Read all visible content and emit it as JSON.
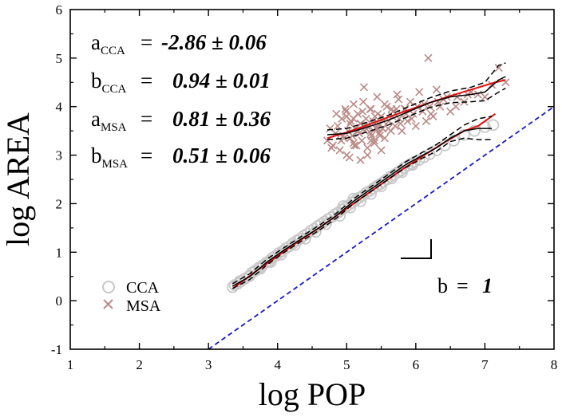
{
  "chart_data": {
    "type": "scatter",
    "title": "",
    "xlabel": "log POP",
    "ylabel": "log AREA",
    "xlim": [
      1,
      8
    ],
    "ylim": [
      -1,
      6
    ],
    "xticks": [
      "1",
      "2",
      "3",
      "4",
      "5",
      "6",
      "7",
      "8"
    ],
    "yticks": [
      "-1",
      "0",
      "1",
      "2",
      "3",
      "4",
      "5",
      "6"
    ],
    "annotations": [
      {
        "param": "a",
        "sub": "CCA",
        "eq": "=",
        "value": "-2.86 ± 0.06"
      },
      {
        "param": "b",
        "sub": "CCA",
        "eq": "=",
        "value": "0.94 ± 0.01"
      },
      {
        "param": "a",
        "sub": "MSA",
        "eq": "=",
        "value": "0.81 ± 0.36"
      },
      {
        "param": "b",
        "sub": "MSA",
        "eq": "=",
        "value": "0.51 ± 0.06"
      }
    ],
    "legend": {
      "placement": "bottom-left",
      "entries": [
        {
          "label": "CCA",
          "marker": "circle",
          "color": "#c8c8c8"
        },
        {
          "label": "MSA",
          "marker": "x",
          "color": "#b98a87"
        }
      ]
    },
    "slope_label": {
      "text": "b",
      "eq": "=",
      "value": "1"
    },
    "reference_line": {
      "name": "slope 1",
      "x": [
        3,
        8
      ],
      "y": [
        -1,
        4
      ],
      "color": "#1a1acc",
      "style": "dashed"
    },
    "series": [
      {
        "name": "CCA",
        "marker": "circle",
        "color": "#c8c8c8",
        "x": [
          3.35,
          3.38,
          3.42,
          3.47,
          3.52,
          3.58,
          3.63,
          3.68,
          3.73,
          3.78,
          3.83,
          3.88,
          3.92,
          3.97,
          4.02,
          4.07,
          4.12,
          4.17,
          4.22,
          4.28,
          4.33,
          4.38,
          4.43,
          4.48,
          4.53,
          4.58,
          4.63,
          4.68,
          4.73,
          4.78,
          4.83,
          4.88,
          4.93,
          4.98,
          5.03,
          5.08,
          5.13,
          5.18,
          5.23,
          5.28,
          5.33,
          5.38,
          5.43,
          5.48,
          5.53,
          5.58,
          5.63,
          5.68,
          5.73,
          5.78,
          5.83,
          5.88,
          5.93,
          5.98,
          6.05,
          6.12,
          6.2,
          6.3,
          6.42,
          6.55,
          6.7,
          6.85,
          7.0,
          7.12,
          3.45,
          3.6,
          3.75,
          3.9,
          4.05,
          4.25,
          4.4,
          4.55,
          4.7,
          4.9,
          5.05,
          5.2,
          5.35,
          5.5,
          5.65,
          5.8,
          5.95,
          4.95,
          5.1
        ],
        "y": [
          0.28,
          0.32,
          0.35,
          0.4,
          0.45,
          0.5,
          0.58,
          0.62,
          0.68,
          0.72,
          0.78,
          0.82,
          0.88,
          0.92,
          0.98,
          1.02,
          1.08,
          1.12,
          1.18,
          1.24,
          1.28,
          1.34,
          1.38,
          1.44,
          1.48,
          1.54,
          1.58,
          1.63,
          1.68,
          1.72,
          1.78,
          1.82,
          1.88,
          1.92,
          1.97,
          2.02,
          2.07,
          2.12,
          2.16,
          2.22,
          2.26,
          2.31,
          2.36,
          2.4,
          2.45,
          2.5,
          2.55,
          2.59,
          2.64,
          2.68,
          2.74,
          2.78,
          2.82,
          2.86,
          2.9,
          2.96,
          3.02,
          3.1,
          3.2,
          3.3,
          3.42,
          3.5,
          3.58,
          3.62,
          0.4,
          0.52,
          0.66,
          0.8,
          0.95,
          1.15,
          1.28,
          1.42,
          1.58,
          1.75,
          1.92,
          2.05,
          2.2,
          2.36,
          2.52,
          2.65,
          2.8,
          1.95,
          2.1
        ]
      },
      {
        "name": "MSA",
        "marker": "x",
        "color": "#b98a87",
        "x": [
          4.72,
          4.76,
          4.8,
          4.84,
          4.87,
          4.9,
          4.93,
          4.96,
          4.99,
          5.02,
          5.04,
          5.06,
          5.08,
          5.1,
          5.12,
          5.14,
          5.16,
          5.18,
          5.2,
          5.22,
          5.24,
          5.26,
          5.28,
          5.3,
          5.32,
          5.34,
          5.36,
          5.38,
          5.4,
          5.42,
          5.44,
          5.46,
          5.48,
          5.5,
          5.52,
          5.55,
          5.58,
          5.61,
          5.64,
          5.67,
          5.7,
          5.73,
          5.76,
          5.8,
          5.84,
          5.88,
          5.92,
          5.96,
          6.0,
          6.05,
          6.1,
          6.15,
          6.2,
          6.25,
          6.3,
          6.35,
          6.4,
          6.5,
          6.6,
          6.7,
          6.8,
          6.9,
          7.0,
          7.1,
          7.2,
          7.3,
          4.78,
          4.85,
          4.92,
          4.98,
          5.05,
          5.11,
          5.17,
          5.23,
          5.29,
          5.35,
          5.41,
          5.47,
          5.53,
          5.6,
          5.66,
          5.72,
          5.78,
          5.86,
          5.94,
          6.02,
          6.12,
          6.22,
          6.32,
          6.45,
          6.58,
          6.75,
          5.0,
          5.1,
          5.2,
          5.3,
          5.4,
          5.5,
          5.15,
          5.25,
          5.35,
          5.45,
          5.0,
          5.1,
          5.2,
          4.95,
          5.05,
          5.25,
          5.35,
          5.45,
          5.55,
          5.65,
          5.75,
          5.85,
          6.18
        ],
        "y": [
          3.3,
          3.55,
          3.2,
          3.45,
          3.6,
          3.1,
          3.75,
          3.35,
          3.9,
          3.5,
          2.95,
          3.7,
          3.4,
          4.05,
          3.55,
          3.2,
          3.85,
          3.45,
          3.65,
          3.3,
          4.1,
          3.5,
          3.75,
          3.0,
          3.6,
          3.95,
          3.4,
          3.7,
          3.25,
          3.55,
          4.2,
          3.65,
          3.4,
          3.8,
          3.55,
          3.35,
          4.0,
          3.7,
          3.5,
          3.9,
          3.6,
          4.25,
          3.75,
          3.5,
          3.95,
          3.7,
          4.1,
          3.85,
          3.6,
          4.3,
          3.9,
          3.7,
          4.0,
          3.8,
          4.35,
          4.0,
          4.15,
          3.9,
          4.2,
          4.1,
          4.3,
          4.25,
          4.2,
          4.45,
          4.8,
          4.5,
          3.15,
          3.85,
          3.3,
          3.95,
          3.65,
          3.2,
          3.5,
          3.9,
          3.6,
          3.3,
          3.8,
          3.45,
          3.7,
          3.55,
          3.8,
          3.95,
          3.65,
          3.85,
          3.75,
          4.0,
          4.05,
          3.85,
          4.1,
          4.2,
          4.0,
          4.25,
          3.0,
          3.25,
          2.9,
          3.15,
          3.3,
          3.1,
          3.5,
          3.6,
          3.45,
          3.55,
          3.8,
          3.75,
          3.65,
          3.4,
          3.35,
          4.4,
          3.95,
          3.85,
          4.05,
          3.95,
          4.15,
          3.95,
          5.0
        ]
      },
      {
        "name": "CCA fit",
        "style": "solid",
        "color": "#e01010",
        "x": [
          3.35,
          3.7,
          4.0,
          4.3,
          4.6,
          4.9,
          5.2,
          5.5,
          5.8,
          6.1,
          6.4,
          6.7,
          6.9,
          7.15
        ],
        "y": [
          0.25,
          0.62,
          0.92,
          1.22,
          1.5,
          1.8,
          2.1,
          2.4,
          2.7,
          2.98,
          3.25,
          3.5,
          3.6,
          3.85
        ]
      },
      {
        "name": "CCA nonparametric",
        "style": "solid",
        "color": "#000000",
        "x": [
          3.35,
          3.6,
          3.85,
          4.1,
          4.35,
          4.6,
          4.85,
          5.1,
          5.35,
          5.6,
          5.85,
          6.1,
          6.3,
          6.5,
          6.7,
          6.9,
          7.1
        ],
        "y": [
          0.3,
          0.5,
          0.8,
          1.05,
          1.28,
          1.5,
          1.75,
          2.05,
          2.3,
          2.55,
          2.8,
          3.0,
          3.15,
          3.35,
          3.5,
          3.55,
          3.55
        ]
      },
      {
        "name": "CCA upper bound",
        "style": "dashed",
        "color": "#000000",
        "x": [
          3.35,
          3.6,
          3.85,
          4.1,
          4.35,
          4.6,
          4.85,
          5.1,
          5.35,
          5.6,
          5.85,
          6.1,
          6.3,
          6.5,
          6.7,
          6.9,
          7.1
        ],
        "y": [
          0.35,
          0.56,
          0.86,
          1.1,
          1.33,
          1.55,
          1.8,
          2.1,
          2.35,
          2.6,
          2.86,
          3.06,
          3.22,
          3.42,
          3.62,
          3.75,
          3.8
        ]
      },
      {
        "name": "CCA lower bound",
        "style": "dashed",
        "color": "#000000",
        "x": [
          3.35,
          3.6,
          3.85,
          4.1,
          4.35,
          4.6,
          4.85,
          5.1,
          5.35,
          5.6,
          5.85,
          6.1,
          6.3,
          6.5,
          6.7,
          6.9,
          7.1
        ],
        "y": [
          0.25,
          0.44,
          0.74,
          1.0,
          1.23,
          1.45,
          1.7,
          2.0,
          2.25,
          2.5,
          2.74,
          2.94,
          3.08,
          3.28,
          3.35,
          3.32,
          3.32
        ]
      },
      {
        "name": "MSA fit",
        "style": "solid",
        "color": "#e01010",
        "x": [
          4.72,
          5.0,
          5.3,
          5.6,
          5.9,
          6.2,
          6.5,
          6.8,
          7.1,
          7.3
        ],
        "y": [
          3.35,
          3.47,
          3.62,
          3.78,
          3.93,
          4.08,
          4.22,
          4.35,
          4.48,
          4.55
        ]
      },
      {
        "name": "MSA nonparametric",
        "style": "solid",
        "color": "#000000",
        "x": [
          4.72,
          5.0,
          5.3,
          5.6,
          5.9,
          6.2,
          6.5,
          6.8,
          7.0,
          7.2,
          7.3
        ],
        "y": [
          3.42,
          3.45,
          3.58,
          3.72,
          3.9,
          4.08,
          4.2,
          4.25,
          4.3,
          4.55,
          4.62
        ]
      },
      {
        "name": "MSA upper bound",
        "style": "dashed",
        "color": "#000000",
        "x": [
          4.72,
          5.0,
          5.3,
          5.6,
          5.9,
          6.2,
          6.5,
          6.8,
          7.0,
          7.2,
          7.3
        ],
        "y": [
          3.52,
          3.55,
          3.68,
          3.82,
          4.0,
          4.18,
          4.32,
          4.4,
          4.5,
          4.85,
          4.9
        ]
      },
      {
        "name": "MSA lower bound",
        "style": "dashed",
        "color": "#000000",
        "x": [
          4.72,
          5.0,
          5.3,
          5.6,
          5.9,
          6.2,
          6.5,
          6.8,
          7.0,
          7.2,
          7.3
        ],
        "y": [
          3.32,
          3.35,
          3.48,
          3.62,
          3.8,
          3.98,
          4.08,
          4.1,
          4.12,
          4.3,
          4.38
        ]
      }
    ]
  }
}
